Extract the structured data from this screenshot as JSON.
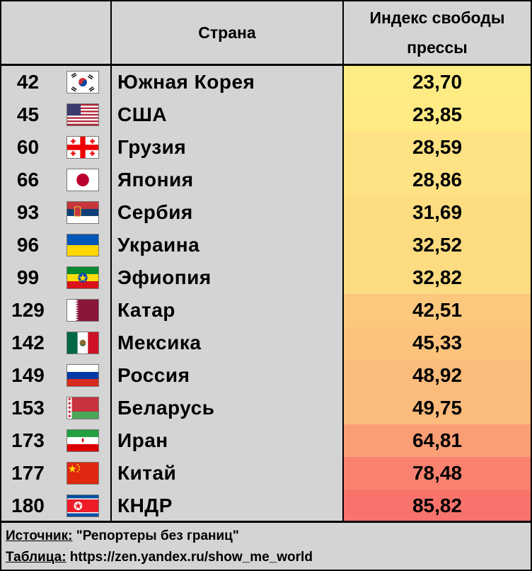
{
  "header": {
    "country": "Страна",
    "index": "Индекс свободы\nпрессы"
  },
  "rows": [
    {
      "rank": "42",
      "country": "Южная Корея",
      "value": "23,70",
      "flag": "south-korea",
      "color": "#ffeb84"
    },
    {
      "rank": "45",
      "country": "США",
      "value": "23,85",
      "flag": "usa",
      "color": "#ffea84"
    },
    {
      "rank": "60",
      "country": "Грузия",
      "value": "28,59",
      "flag": "georgia",
      "color": "#fee283"
    },
    {
      "rank": "66",
      "country": "Япония",
      "value": "28,86",
      "flag": "japan",
      "color": "#fee283"
    },
    {
      "rank": "93",
      "country": "Сербия",
      "value": "31,69",
      "flag": "serbia",
      "color": "#fedd81"
    },
    {
      "rank": "96",
      "country": "Украина",
      "value": "32,52",
      "flag": "ukraine",
      "color": "#fddb81"
    },
    {
      "rank": "99",
      "country": "Эфиопия",
      "value": "32,82",
      "flag": "ethiopia",
      "color": "#fddb81"
    },
    {
      "rank": "129",
      "country": "Катар",
      "value": "42,51",
      "flag": "qatar",
      "color": "#fcc87d"
    },
    {
      "rank": "142",
      "country": "Мексика",
      "value": "45,33",
      "flag": "mexico",
      "color": "#fcc37c"
    },
    {
      "rank": "149",
      "country": "Россия",
      "value": "48,92",
      "flag": "russia",
      "color": "#fbbc7b"
    },
    {
      "rank": "153",
      "country": "Беларусь",
      "value": "49,75",
      "flag": "belarus",
      "color": "#fbbb7b"
    },
    {
      "rank": "173",
      "country": "Иран",
      "value": "64,81",
      "flag": "iran",
      "color": "#fa9e75"
    },
    {
      "rank": "177",
      "country": "Китай",
      "value": "78,48",
      "flag": "china",
      "color": "#f8826f"
    },
    {
      "rank": "180",
      "country": "КНДР",
      "value": "85,82",
      "flag": "north-korea",
      "color": "#f8736c"
    }
  ],
  "footer": {
    "source_label": "Источник:",
    "source_text": " \"Репортеры без границ\"",
    "table_label": "Таблица:",
    "table_text": " https://zen.yandex.ru/show_me_world"
  }
}
